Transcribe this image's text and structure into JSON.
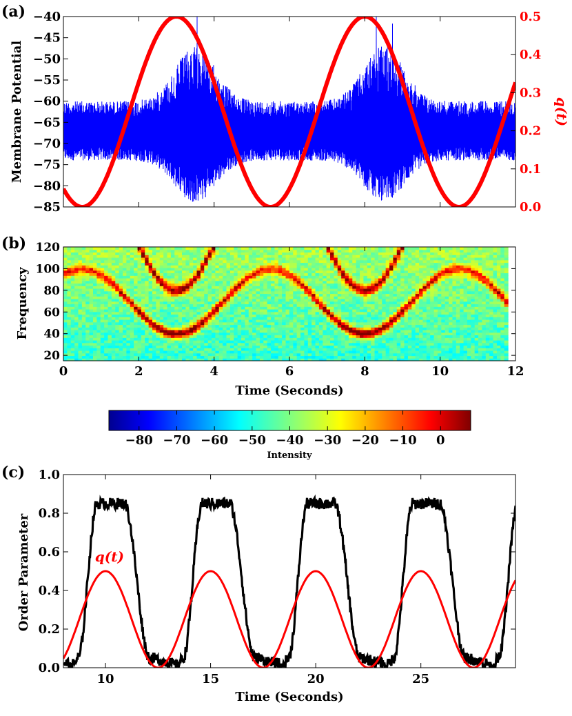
{
  "chart_data": [
    {
      "panel_label": "(a)",
      "type": "line",
      "xlim": [
        0,
        12
      ],
      "ylabel": "Membrane Potential",
      "ylim": [
        -85,
        -40
      ],
      "yticks": [
        -85,
        -80,
        -75,
        -70,
        -65,
        -60,
        -55,
        -50,
        -45,
        -40
      ],
      "ytick_labels": [
        "−85",
        "−80",
        "−75",
        "−70",
        "−65",
        "−60",
        "−55",
        "−50",
        "−45",
        "−40"
      ],
      "y2label": "q(t)",
      "y2lim": [
        0.0,
        0.5
      ],
      "y2ticks": [
        0.0,
        0.1,
        0.2,
        0.3,
        0.4,
        0.5
      ],
      "y2tick_labels": [
        "0.0",
        "0.1",
        "0.2",
        "0.3",
        "0.4",
        "0.5"
      ],
      "series": [
        {
          "name": "Membrane potential",
          "color": "#0000ff",
          "baseline": -67,
          "range_quiet": [
            -74,
            -60
          ],
          "range_peak": [
            -84,
            -47
          ],
          "peak_times": [
            3.5,
            8.5
          ],
          "spike_max": -42
        },
        {
          "name": "q(t)",
          "color": "#ff0000",
          "axis": "right",
          "amplitude": 0.25,
          "offset": 0.25,
          "period": 5,
          "peaks_at": [
            3,
            8
          ],
          "troughs_at": [
            0.5,
            5.5,
            10.5
          ]
        }
      ]
    },
    {
      "panel_label": "(b)",
      "type": "heatmap",
      "xlabel": "Time (Seconds)",
      "ylabel": "Frequency",
      "xlim": [
        0,
        12
      ],
      "ylim": [
        15,
        120
      ],
      "xticks": [
        0,
        2,
        4,
        6,
        8,
        10,
        12
      ],
      "xtick_labels": [
        "0",
        "2",
        "4",
        "6",
        "8",
        "10",
        "12"
      ],
      "yticks": [
        20,
        40,
        60,
        80,
        100,
        120
      ],
      "ytick_labels": [
        "20",
        "40",
        "60",
        "80",
        "100",
        "120"
      ],
      "ridges": [
        {
          "name": "fundamental",
          "min_freq": 40,
          "max_freq": 100,
          "min_at": [
            3,
            8
          ],
          "max_at": [
            0.5,
            5.5,
            10.5
          ]
        },
        {
          "name": "harmonic",
          "min_freq": 80,
          "min_at": [
            3,
            8
          ]
        }
      ],
      "colorbar": {
        "label": "Intensity",
        "range": [
          -88,
          8
        ],
        "ticks": [
          -80,
          -70,
          -60,
          -50,
          -40,
          -30,
          -20,
          -10,
          0
        ],
        "tick_labels": [
          "−80",
          "−70",
          "−60",
          "−50",
          "−40",
          "−30",
          "−20",
          "−10",
          "0"
        ],
        "colormap": "jet"
      }
    },
    {
      "panel_label": "(c)",
      "type": "line",
      "xlabel": "Time (Seconds)",
      "ylabel": "Order Parameter",
      "xlim": [
        8,
        29.5
      ],
      "ylim": [
        0.0,
        1.0
      ],
      "xticks": [
        10,
        15,
        20,
        25
      ],
      "xtick_labels": [
        "10",
        "15",
        "20",
        "25"
      ],
      "yticks": [
        0.0,
        0.2,
        0.4,
        0.6,
        0.8,
        1.0
      ],
      "ytick_labels": [
        "0.0",
        "0.2",
        "0.4",
        "0.6",
        "0.8",
        "1.0"
      ],
      "annotation": {
        "text": "q(t)",
        "x": 9.5,
        "y": 0.55,
        "color": "#ff0000"
      },
      "series": [
        {
          "name": "Order parameter",
          "color": "#000000",
          "plateau_high": 0.85,
          "plateau_low": 0.03,
          "high_intervals": [
            [
              9.2,
              11.2
            ],
            [
              14.2,
              16.2
            ],
            [
              19.2,
              21.2
            ],
            [
              24.2,
              26.2
            ]
          ]
        },
        {
          "name": "q(t)",
          "color": "#ff0000",
          "amplitude": 0.25,
          "offset": 0.25,
          "period": 5,
          "peaks_at": [
            10,
            15,
            20,
            25
          ],
          "troughs_at": [
            12.5,
            17.5,
            22.5,
            27.5
          ]
        }
      ]
    }
  ]
}
